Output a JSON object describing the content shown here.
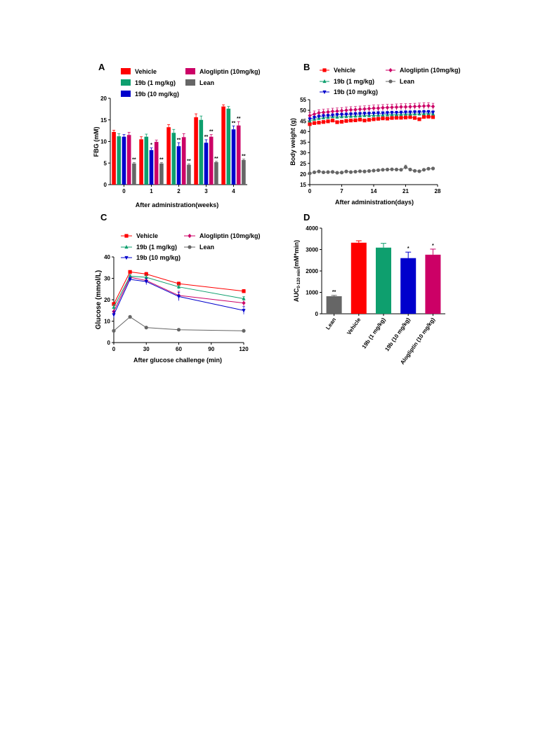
{
  "colors": {
    "Vehicle": "#ff0000",
    "19b (1 mg/kg)": "#0e9f6e",
    "19b (10 mg/kg)": "#0000cc",
    "Alogliptin (10mg/kg)": "#cc0066",
    "Lean": "#666666"
  },
  "chart_data": [
    {
      "panel": "A",
      "type": "bar",
      "xlabel": "After administration(weeks)",
      "ylabel": "FBG (mM)",
      "ylim": [
        0,
        20
      ],
      "yticks": [
        0,
        5,
        10,
        15,
        20
      ],
      "categories": [
        "0",
        "1",
        "2",
        "3",
        "4"
      ],
      "legend": [
        "Vehicle",
        "19b (1 mg/kg)",
        "19b (10 mg/kg)",
        "Alogliptin (10mg/kg)",
        "Lean"
      ],
      "series": [
        {
          "name": "Vehicle",
          "values": [
            12.2,
            10.5,
            13.3,
            15.6,
            18.1
          ],
          "errors": [
            0.4,
            0.6,
            0.6,
            0.8,
            0.4
          ]
        },
        {
          "name": "19b (1 mg/kg)",
          "values": [
            11.2,
            11.1,
            12.0,
            15.0,
            17.6
          ],
          "errors": [
            0.6,
            0.6,
            0.8,
            0.9,
            0.5
          ]
        },
        {
          "name": "19b (10 mg/kg)",
          "values": [
            11.1,
            8.0,
            8.9,
            9.7,
            12.8
          ],
          "errors": [
            0.5,
            0.5,
            0.8,
            0.7,
            0.8
          ]
        },
        {
          "name": "Alogliptin (10mg/kg)",
          "values": [
            11.5,
            9.9,
            11.0,
            11.1,
            13.7
          ],
          "errors": [
            0.6,
            0.4,
            0.8,
            0.5,
            0.9
          ]
        },
        {
          "name": "Lean",
          "values": [
            4.9,
            4.9,
            4.6,
            5.2,
            5.7
          ],
          "errors": [
            0.2,
            0.2,
            0.2,
            0.2,
            0.2
          ]
        }
      ],
      "significance": [
        {
          "category": "0",
          "series": "Lean",
          "label": "**"
        },
        {
          "category": "1",
          "series": "19b (10 mg/kg)",
          "label": "*"
        },
        {
          "category": "1",
          "series": "Lean",
          "label": "**"
        },
        {
          "category": "2",
          "series": "19b (10 mg/kg)",
          "label": "**"
        },
        {
          "category": "2",
          "series": "Lean",
          "label": "**"
        },
        {
          "category": "3",
          "series": "19b (10 mg/kg)",
          "label": "**"
        },
        {
          "category": "3",
          "series": "Alogliptin (10mg/kg)",
          "label": "**"
        },
        {
          "category": "3",
          "series": "Lean",
          "label": "**"
        },
        {
          "category": "4",
          "series": "19b (10 mg/kg)",
          "label": "**"
        },
        {
          "category": "4",
          "series": "Alogliptin (10mg/kg)",
          "label": "**"
        },
        {
          "category": "4",
          "series": "Lean",
          "label": "**"
        }
      ]
    },
    {
      "panel": "B",
      "type": "line",
      "xlabel": "After administration(days)",
      "ylabel": "Body weight (g)",
      "xlim": [
        0,
        28
      ],
      "xticks": [
        0,
        7,
        14,
        21,
        28
      ],
      "ylim": [
        15,
        55
      ],
      "yticks": [
        15,
        20,
        25,
        30,
        35,
        40,
        45,
        50,
        55
      ],
      "legend": [
        "Vehicle",
        "Alogliptin (10mg/kg)",
        "19b (1 mg/kg)",
        "Lean",
        "19b (10 mg/kg)"
      ],
      "x": [
        0,
        1,
        2,
        3,
        4,
        5,
        6,
        7,
        8,
        9,
        10,
        11,
        12,
        13,
        14,
        15,
        16,
        17,
        18,
        19,
        20,
        21,
        22,
        23,
        24,
        25,
        26,
        27
      ],
      "series": [
        {
          "name": "Vehicle",
          "values": [
            43.5,
            44,
            44.2,
            44.5,
            44.8,
            45.2,
            44.4,
            44.6,
            45,
            45.2,
            45.3,
            45.6,
            45.2,
            45.5,
            45.8,
            46,
            46.2,
            46.1,
            46.4,
            46.5,
            46.5,
            46.6,
            46.8,
            46.4,
            45.8,
            46.9,
            47,
            46.8
          ],
          "errors": [
            0.6,
            0.6,
            0.6,
            0.6,
            0.6,
            0.6,
            0.6,
            0.6,
            0.6,
            0.6,
            0.6,
            0.6,
            0.6,
            0.6,
            0.6,
            0.6,
            0.6,
            0.6,
            0.6,
            0.6,
            0.6,
            0.6,
            0.6,
            0.6,
            0.6,
            0.6,
            0.6,
            0.6
          ]
        },
        {
          "name": "Alogliptin (10mg/kg)",
          "values": [
            47.5,
            48.2,
            48.8,
            49,
            49.2,
            49.5,
            49.6,
            49.8,
            50,
            50.2,
            50.3,
            50.5,
            50.6,
            50.8,
            51,
            51,
            51.2,
            51.3,
            51.4,
            51.5,
            51.6,
            51.6,
            51.7,
            51.8,
            51.9,
            52,
            52.1,
            51.8
          ],
          "errors": [
            1.5,
            1.5,
            1.5,
            1.5,
            1.5,
            1.5,
            1.5,
            1.5,
            1.5,
            1.5,
            1.5,
            1.5,
            1.5,
            1.5,
            1.5,
            1.5,
            1.5,
            1.5,
            1.5,
            1.5,
            1.5,
            1.5,
            1.5,
            1.5,
            1.5,
            1.5,
            1.5,
            1.5
          ]
        },
        {
          "name": "19b (1 mg/kg)",
          "values": [
            45,
            45.8,
            46.2,
            46.5,
            46.7,
            47,
            46.8,
            47,
            47.1,
            47.2,
            47.3,
            47.4,
            47.5,
            47.5,
            47.6,
            47.7,
            47.8,
            47.9,
            48,
            48,
            48.1,
            48.2,
            48.2,
            48.3,
            48.3,
            48.4,
            48.5,
            48.3
          ],
          "errors": [
            0.8,
            0.8,
            0.8,
            0.8,
            0.8,
            0.8,
            0.8,
            0.8,
            0.8,
            0.8,
            0.8,
            0.8,
            0.8,
            0.8,
            0.8,
            0.8,
            0.8,
            0.8,
            0.8,
            0.8,
            0.8,
            0.8,
            0.8,
            0.8,
            0.8,
            0.8,
            0.8,
            0.8
          ]
        },
        {
          "name": "19b (10 mg/kg)",
          "values": [
            45.8,
            46.5,
            47,
            47.3,
            47.4,
            47.6,
            47.8,
            47.9,
            48,
            48.1,
            48.2,
            48.3,
            48.4,
            48.4,
            48.5,
            48.6,
            48.6,
            48.7,
            48.8,
            48.8,
            48.9,
            49,
            49,
            49.1,
            49.1,
            49.2,
            49.2,
            49
          ],
          "errors": [
            0.8,
            0.8,
            0.8,
            0.8,
            0.8,
            0.8,
            0.8,
            0.8,
            0.8,
            0.8,
            0.8,
            0.8,
            0.8,
            0.8,
            0.8,
            0.8,
            0.8,
            0.8,
            0.8,
            0.8,
            0.8,
            0.8,
            0.8,
            0.8,
            0.8,
            0.8,
            0.8,
            0.8
          ]
        },
        {
          "name": "Lean",
          "values": [
            20.3,
            20.8,
            21.2,
            20.8,
            20.9,
            21,
            20.6,
            20.7,
            21.2,
            20.9,
            21.1,
            21.3,
            21.2,
            21.4,
            21.6,
            21.8,
            22,
            22.1,
            22.2,
            22.1,
            22,
            23.2,
            22.1,
            21.5,
            21.3,
            22,
            22.5,
            22.6
          ],
          "errors": [
            0.4,
            0.4,
            0.4,
            0.4,
            0.4,
            0.4,
            0.4,
            0.4,
            0.4,
            0.4,
            0.4,
            0.4,
            0.4,
            0.4,
            0.4,
            0.4,
            0.4,
            0.4,
            0.4,
            0.4,
            0.4,
            1.0,
            0.4,
            0.4,
            0.4,
            0.4,
            0.4,
            0.4
          ]
        }
      ]
    },
    {
      "panel": "C",
      "type": "line",
      "xlabel": "After glucose challenge (min)",
      "ylabel": "Glucose (mmol/L)",
      "xlim": [
        0,
        120
      ],
      "xticks": [
        0,
        30,
        60,
        90,
        120
      ],
      "ylim": [
        0,
        40
      ],
      "yticks": [
        0,
        10,
        20,
        30,
        40
      ],
      "legend": [
        "Vehicle",
        "Alogliptin (10mg/kg)",
        "19b (1 mg/kg)",
        "Lean",
        "19b (10 mg/kg)"
      ],
      "x": [
        0,
        15,
        30,
        60,
        120
      ],
      "series": [
        {
          "name": "Vehicle",
          "values": [
            18,
            33,
            32,
            27.5,
            24
          ],
          "errors": [
            0.8,
            0.6,
            0.8,
            0.8,
            0.8
          ]
        },
        {
          "name": "Alogliptin (10mg/kg)",
          "values": [
            14.5,
            30.5,
            29,
            22,
            18.5
          ],
          "errors": [
            1.5,
            1.0,
            1.5,
            2.0,
            1.5
          ]
        },
        {
          "name": "19b (1 mg/kg)",
          "values": [
            16.5,
            31,
            30.5,
            26,
            20.5
          ],
          "errors": [
            1.2,
            0.8,
            1.0,
            1.0,
            1.0
          ]
        },
        {
          "name": "Lean",
          "values": [
            5.5,
            12,
            7,
            6,
            5.5
          ],
          "errors": [
            0.3,
            0.5,
            0.3,
            0.3,
            0.3
          ]
        },
        {
          "name": "19b (10 mg/kg)",
          "values": [
            13,
            29.5,
            28.5,
            21.5,
            15
          ],
          "errors": [
            1.5,
            1.0,
            1.5,
            2.0,
            1.8
          ]
        }
      ]
    },
    {
      "panel": "D",
      "type": "bar",
      "ylabel_main": "AUC",
      "ylabel_sub": "0-120 min",
      "ylabel_unit": "(mM*min)",
      "ylim": [
        0,
        4000
      ],
      "yticks": [
        0,
        1000,
        2000,
        3000,
        4000
      ],
      "categories": [
        "Lean",
        "Vehicle",
        "19b (1 mg/kg)",
        "19b (10 mg/kg)",
        "Alogliptin (10 mg/kg)"
      ],
      "values": [
        820,
        3320,
        3090,
        2600,
        2760
      ],
      "errors": [
        40,
        90,
        200,
        280,
        260
      ],
      "bar_colors": [
        "#666666",
        "#ff0000",
        "#0e9f6e",
        "#0000cc",
        "#cc0066"
      ],
      "significance": [
        "**",
        "",
        "",
        "*",
        "*"
      ]
    }
  ]
}
